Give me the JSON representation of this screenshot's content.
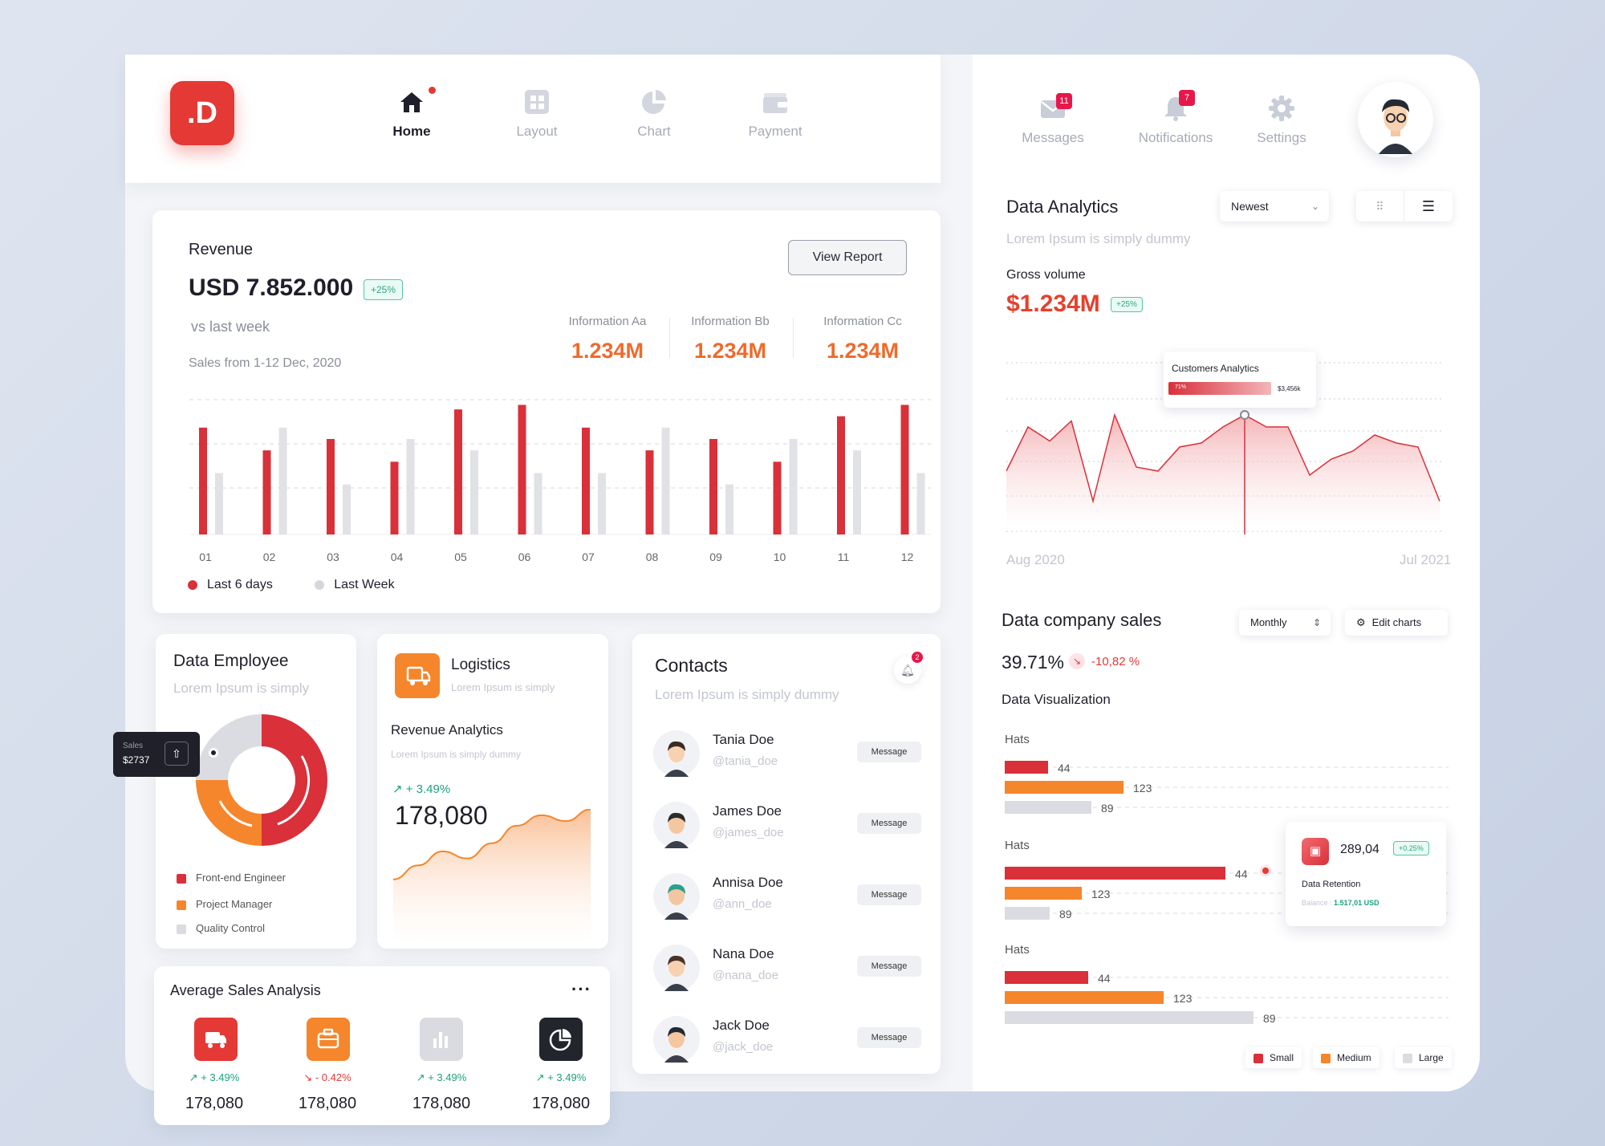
{
  "logo": {
    "text": ".D"
  },
  "nav": [
    {
      "label": "Home",
      "icon": "home-icon",
      "active": true
    },
    {
      "label": "Layout",
      "icon": "grid-icon"
    },
    {
      "label": "Chart",
      "icon": "pie-chart-icon"
    },
    {
      "label": "Payment",
      "icon": "wallet-icon"
    }
  ],
  "topright": {
    "messages": {
      "label": "Messages",
      "count": "11"
    },
    "notifications": {
      "label": "Notifications",
      "count": "7"
    },
    "settings": {
      "label": "Settings"
    }
  },
  "revenue": {
    "title": "Revenue",
    "amount": "USD 7.852.000",
    "badge": "+25%",
    "compare": "vs last week",
    "period": "Sales from 1-12 Dec, 2020",
    "view_report": "View Report",
    "info": [
      {
        "label": "Information Aa",
        "value": "1.234M"
      },
      {
        "label": "Information Bb",
        "value": "1.234M"
      },
      {
        "label": "Information Cc",
        "value": "1.234M"
      }
    ],
    "legend": [
      "Last 6 days",
      "Last Week"
    ]
  },
  "data_employee": {
    "title": "Data Employee",
    "subtitle": "Lorem Ipsum is simply",
    "tooltip_label": "Sales",
    "tooltip_value": "$2737",
    "legend": [
      "Front-end Engineer",
      "Project Manager",
      "Quality Control"
    ]
  },
  "logistics": {
    "title": "Logistics",
    "subtitle": "Lorem Ipsum is simply",
    "section_title": "Revenue Analytics",
    "section_sub": "Lorem Ipsum is simply dummy",
    "change": "+ 3.49%",
    "value": "178,080"
  },
  "contacts": {
    "title": "Contacts",
    "subtitle": "Lorem Ipsum is simply dummy",
    "bell_count": "2",
    "button_label": "Message",
    "items": [
      {
        "name": "Tania Doe",
        "handle": "@tania_doe"
      },
      {
        "name": "James Doe",
        "handle": "@james_doe"
      },
      {
        "name": "Annisa Doe",
        "handle": "@ann_doe"
      },
      {
        "name": "Nana Doe",
        "handle": "@nana_doe"
      },
      {
        "name": "Jack Doe",
        "handle": "@jack_doe"
      }
    ]
  },
  "avg_sales": {
    "title": "Average Sales Analysis",
    "items": [
      {
        "change": "+ 3.49%",
        "value": "178,080",
        "dir": "up",
        "color": "#e53935",
        "icon": "truck-icon"
      },
      {
        "change": "- 0.42%",
        "value": "178,080",
        "dir": "down",
        "color": "#f5862c",
        "icon": "briefcase-icon"
      },
      {
        "change": "+ 3.49%",
        "value": "178,080",
        "dir": "up",
        "color": "#d9dbe0",
        "icon": "bar-chart-icon"
      },
      {
        "change": "+ 3.49%",
        "value": "178,080",
        "dir": "up",
        "color": "#23252d",
        "icon": "pie-chart-icon"
      }
    ]
  },
  "analytics": {
    "title": "Data Analytics",
    "subtitle": "Lorem Ipsum is simply dummy",
    "sort": "Newest",
    "gross_label": "Gross volume",
    "gross_value": "$1.234M",
    "gross_badge": "+25%",
    "tooltip_title": "Customers Analytics",
    "tooltip_pct": "71%",
    "tooltip_value": "$3,456k",
    "x_start": "Aug 2020",
    "x_end": "Jul 2021"
  },
  "company_sales": {
    "title": "Data company sales",
    "period": "Monthly",
    "edit": "Edit charts",
    "percent": "39.71%",
    "change": "-10,82 %",
    "subtitle": "Data Visualization",
    "retention_value": "289,04",
    "retention_badge": "+0.25%",
    "retention_label": "Data Retention",
    "balance_label": "Balance :",
    "balance_value": "1.517,01 USD",
    "legend": [
      "Small",
      "Medium",
      "Large"
    ]
  },
  "chart_data": [
    {
      "type": "bar",
      "categories": [
        "01",
        "02",
        "03",
        "04",
        "05",
        "06",
        "07",
        "08",
        "09",
        "10",
        "11",
        "12"
      ],
      "series": [
        {
          "name": "Last 6 days",
          "values": [
            47,
            37,
            42,
            32,
            55,
            57,
            47,
            37,
            42,
            32,
            52,
            57
          ],
          "color": "#d9303a"
        },
        {
          "name": "Last Week",
          "values": [
            27,
            47,
            22,
            42,
            37,
            27,
            27,
            47,
            22,
            42,
            37,
            27
          ],
          "color": "#e1e2e6"
        }
      ],
      "ylim": [
        0,
        60
      ]
    },
    {
      "type": "pie",
      "labels": [
        "Front-end Engineer",
        "Project Manager",
        "Quality Control"
      ],
      "values": [
        50,
        25,
        25
      ],
      "colors": [
        "#d9303a",
        "#f5862c",
        "#dadce1"
      ]
    },
    {
      "type": "area",
      "values": [
        40,
        52,
        64,
        58,
        71,
        86,
        95,
        90,
        100
      ],
      "ylim": [
        0,
        110
      ]
    },
    {
      "type": "area",
      "values": [
        30,
        52,
        45,
        55,
        15,
        58,
        32,
        30,
        42,
        44,
        52,
        58,
        52,
        52,
        28,
        36,
        40,
        48,
        44,
        42,
        15
      ],
      "ylim": [
        0,
        80
      ]
    },
    {
      "type": "bar",
      "orientation": "horizontal",
      "groups": [
        {
          "name": "Hats",
          "values": [
            44,
            123,
            89
          ]
        },
        {
          "name": "Hats",
          "values": [
            44,
            123,
            89
          ]
        },
        {
          "name": "Hats",
          "values": [
            44,
            123,
            89
          ]
        }
      ],
      "legend": [
        "Small",
        "Medium",
        "Large"
      ],
      "colors": [
        "#d9303a",
        "#f5862c",
        "#dadce1"
      ]
    }
  ]
}
